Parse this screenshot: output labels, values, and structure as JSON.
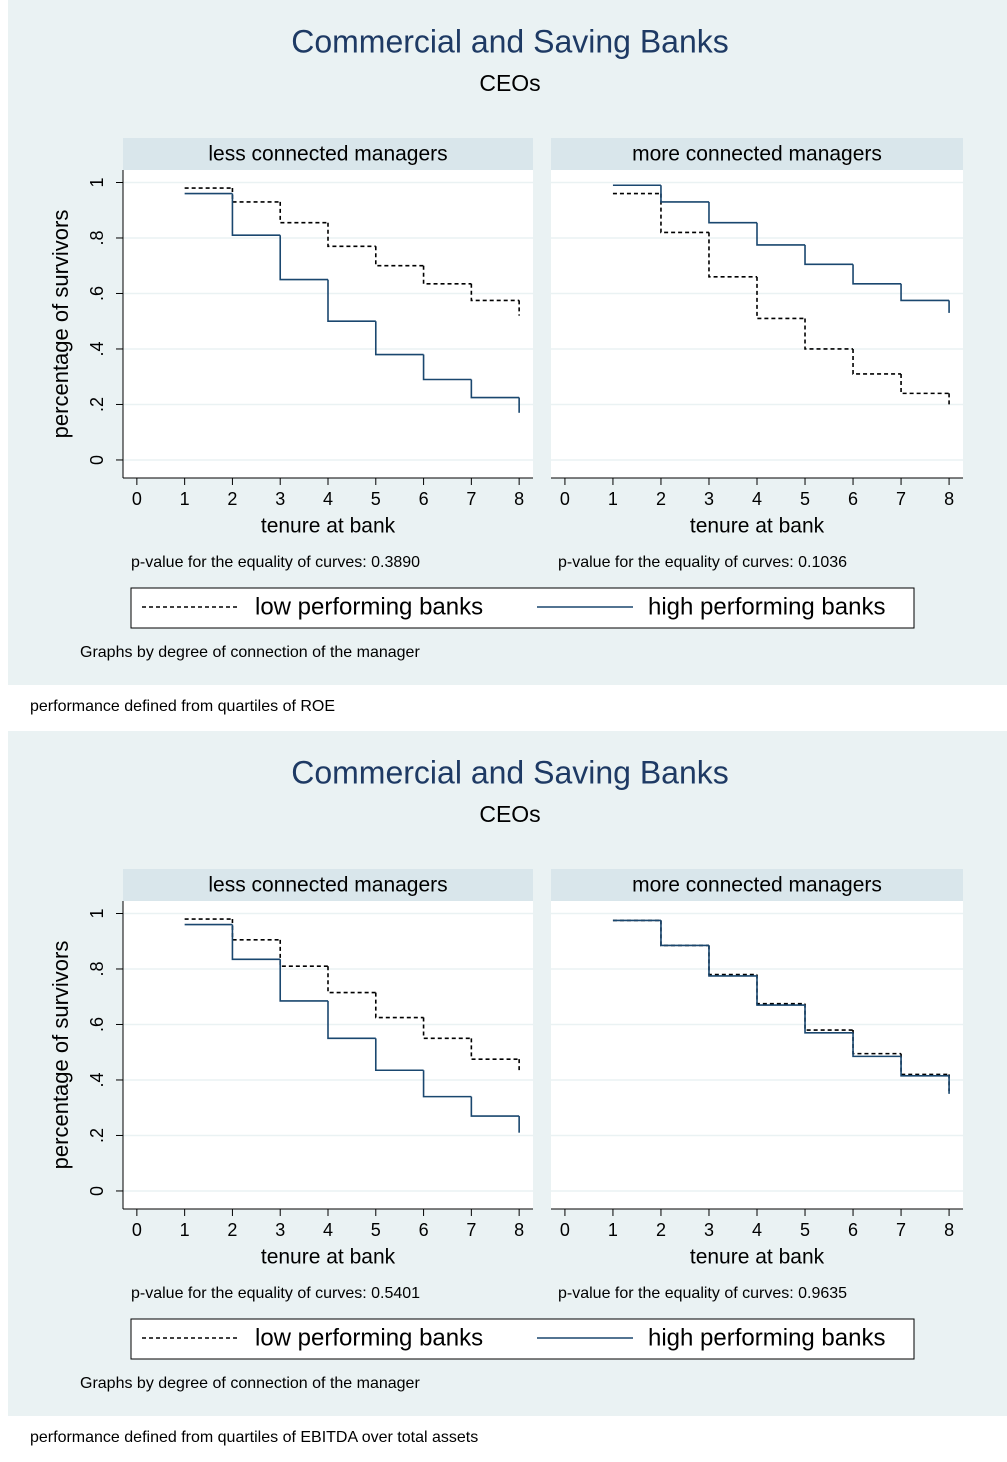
{
  "chart_data": [
    {
      "type": "step",
      "title": "Commercial and Saving Banks",
      "subtitle": "CEOs",
      "ylabel": "percentage of survivors",
      "xlabel": "tenure at bank",
      "x": [
        1,
        2,
        3,
        4,
        5,
        6,
        7,
        8
      ],
      "xlim": [
        -0.29,
        8.29
      ],
      "xticks": [
        0,
        1,
        2,
        3,
        4,
        5,
        6,
        7,
        8
      ],
      "ylim": [
        -0.065,
        1.045
      ],
      "yticks": [
        0,
        {
          "value": 0.2,
          "label": ".2"
        },
        {
          "value": 0.4,
          "label": ".4"
        },
        {
          "value": 0.6,
          "label": ".6"
        },
        {
          "value": 0.8,
          "label": ".8"
        },
        1
      ],
      "grid": true,
      "series": [
        {
          "name": "low performing banks",
          "color": "#000000",
          "dashed": true
        },
        {
          "name": "high performing banks",
          "color": "#1a476f",
          "dashed": false
        }
      ],
      "panels": [
        {
          "title": "less connected managers",
          "pvalue": "p-value for the equality of curves: 0.3890",
          "series": [
            {
              "values": [
                0.98,
                0.93,
                0.855,
                0.77,
                0.7,
                0.635,
                0.575,
                0.52
              ]
            },
            {
              "values": [
                0.96,
                0.81,
                0.65,
                0.5,
                0.38,
                0.29,
                0.225,
                0.17
              ]
            }
          ]
        },
        {
          "title": "more connected managers",
          "pvalue": "p-value for the equality of curves: 0.1036",
          "series": [
            {
              "values": [
                0.96,
                0.82,
                0.66,
                0.51,
                0.4,
                0.31,
                0.24,
                0.19
              ]
            },
            {
              "values": [
                0.99,
                0.93,
                0.855,
                0.775,
                0.705,
                0.635,
                0.575,
                0.53
              ]
            }
          ]
        }
      ],
      "note": "Graphs by degree of connection of the manager",
      "caption": "performance defined from quartiles of ROE"
    },
    {
      "type": "step",
      "title": "Commercial and Saving Banks",
      "subtitle": "CEOs",
      "ylabel": "percentage of survivors",
      "xlabel": "tenure at bank",
      "x": [
        1,
        2,
        3,
        4,
        5,
        6,
        7,
        8
      ],
      "xlim": [
        -0.29,
        8.29
      ],
      "xticks": [
        0,
        1,
        2,
        3,
        4,
        5,
        6,
        7,
        8
      ],
      "ylim": [
        -0.065,
        1.045
      ],
      "yticks": [
        0,
        {
          "value": 0.2,
          "label": ".2"
        },
        {
          "value": 0.4,
          "label": ".4"
        },
        {
          "value": 0.6,
          "label": ".6"
        },
        {
          "value": 0.8,
          "label": ".8"
        },
        1
      ],
      "grid": true,
      "series": [
        {
          "name": "low performing banks",
          "color": "#000000",
          "dashed": true
        },
        {
          "name": "high performing banks",
          "color": "#1a476f",
          "dashed": false
        }
      ],
      "panels": [
        {
          "title": "less connected managers",
          "pvalue": "p-value for the equality of curves: 0.5401",
          "series": [
            {
              "values": [
                0.98,
                0.905,
                0.81,
                0.715,
                0.625,
                0.55,
                0.475,
                0.43
              ]
            },
            {
              "values": [
                0.96,
                0.835,
                0.685,
                0.55,
                0.435,
                0.34,
                0.27,
                0.21
              ]
            }
          ]
        },
        {
          "title": "more connected managers",
          "pvalue": "p-value for the equality of curves: 0.9635",
          "series": [
            {
              "values": [
                0.975,
                0.885,
                0.78,
                0.675,
                0.58,
                0.495,
                0.42,
                0.36
              ]
            },
            {
              "values": [
                0.975,
                0.885,
                0.775,
                0.67,
                0.57,
                0.485,
                0.415,
                0.35
              ]
            }
          ]
        }
      ],
      "note": "Graphs by degree of connection of the manager",
      "caption": "performance defined from quartiles of EBITDA over total assets"
    }
  ]
}
